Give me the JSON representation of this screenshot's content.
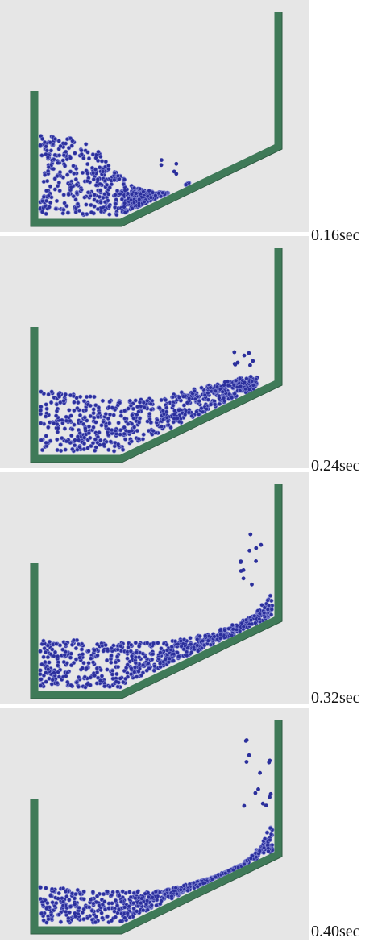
{
  "frames": [
    {
      "label": "0.16sec"
    },
    {
      "label": "0.24sec"
    },
    {
      "label": "0.32sec"
    },
    {
      "label": "0.40sec"
    }
  ]
}
